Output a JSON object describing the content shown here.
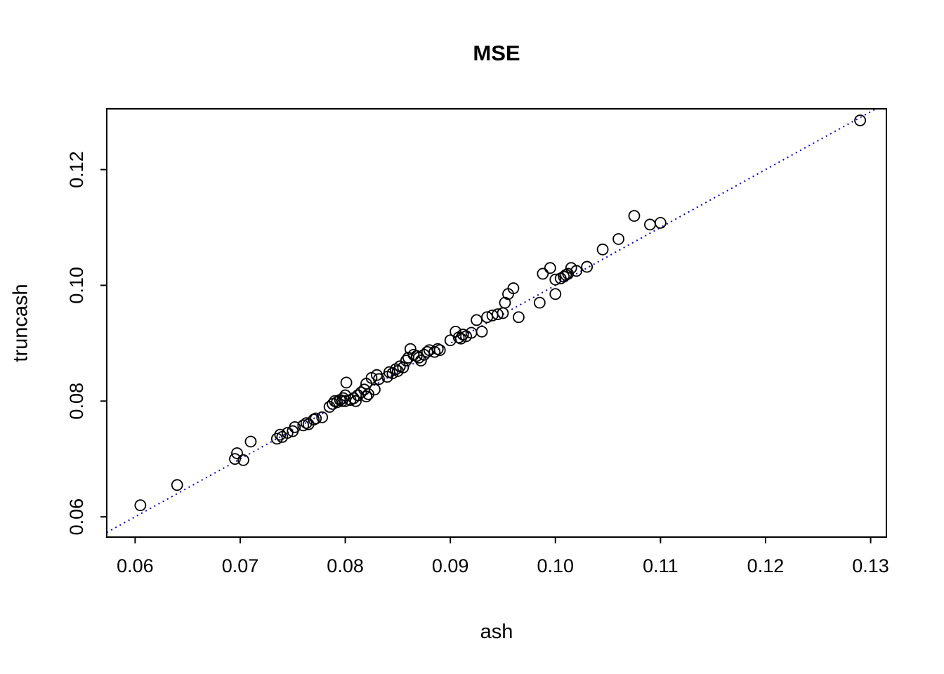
{
  "chart_data": {
    "type": "scatter",
    "title": "MSE",
    "xlabel": "ash",
    "ylabel": "truncash",
    "xlim": [
      0.0573,
      0.1315
    ],
    "ylim": [
      0.0565,
      0.1305
    ],
    "xticks": [
      0.06,
      0.07,
      0.08,
      0.09,
      0.1,
      0.11,
      0.12,
      0.13
    ],
    "yticks": [
      0.06,
      0.08,
      0.1,
      0.12
    ],
    "grid": false,
    "point_style": "open-circle",
    "point_color": "#000000",
    "reference_line": {
      "slope": 1,
      "intercept": 0,
      "style": "dotted",
      "color": "#0000CD"
    },
    "points": [
      [
        0.0605,
        0.062
      ],
      [
        0.064,
        0.0655
      ],
      [
        0.0695,
        0.07
      ],
      [
        0.0697,
        0.071
      ],
      [
        0.0703,
        0.0698
      ],
      [
        0.071,
        0.073
      ],
      [
        0.0735,
        0.0735
      ],
      [
        0.0738,
        0.0742
      ],
      [
        0.074,
        0.0738
      ],
      [
        0.0745,
        0.0745
      ],
      [
        0.075,
        0.0748
      ],
      [
        0.0752,
        0.0755
      ],
      [
        0.076,
        0.0758
      ],
      [
        0.0763,
        0.0762
      ],
      [
        0.0765,
        0.076
      ],
      [
        0.077,
        0.0768
      ],
      [
        0.0772,
        0.077
      ],
      [
        0.0778,
        0.0772
      ],
      [
        0.0785,
        0.079
      ],
      [
        0.0788,
        0.0795
      ],
      [
        0.079,
        0.08
      ],
      [
        0.0792,
        0.0798
      ],
      [
        0.0795,
        0.0802
      ],
      [
        0.0797,
        0.08
      ],
      [
        0.0798,
        0.0805
      ],
      [
        0.08,
        0.08
      ],
      [
        0.08,
        0.081
      ],
      [
        0.0801,
        0.0832
      ],
      [
        0.0805,
        0.0802
      ],
      [
        0.0808,
        0.0805
      ],
      [
        0.081,
        0.08
      ],
      [
        0.0812,
        0.081
      ],
      [
        0.0815,
        0.0815
      ],
      [
        0.0818,
        0.082
      ],
      [
        0.082,
        0.0808
      ],
      [
        0.082,
        0.083
      ],
      [
        0.0822,
        0.0812
      ],
      [
        0.0825,
        0.084
      ],
      [
        0.0828,
        0.082
      ],
      [
        0.083,
        0.0845
      ],
      [
        0.0832,
        0.0838
      ],
      [
        0.084,
        0.0842
      ],
      [
        0.0842,
        0.085
      ],
      [
        0.0845,
        0.0848
      ],
      [
        0.0848,
        0.0855
      ],
      [
        0.085,
        0.0852
      ],
      [
        0.0852,
        0.086
      ],
      [
        0.0855,
        0.0858
      ],
      [
        0.0858,
        0.087
      ],
      [
        0.086,
        0.0875
      ],
      [
        0.0862,
        0.089
      ],
      [
        0.0865,
        0.088
      ],
      [
        0.0868,
        0.0878
      ],
      [
        0.087,
        0.0875
      ],
      [
        0.0872,
        0.087
      ],
      [
        0.0875,
        0.088
      ],
      [
        0.0878,
        0.0885
      ],
      [
        0.088,
        0.0888
      ],
      [
        0.0885,
        0.0885
      ],
      [
        0.0888,
        0.089
      ],
      [
        0.089,
        0.0888
      ],
      [
        0.09,
        0.0905
      ],
      [
        0.0905,
        0.092
      ],
      [
        0.0908,
        0.091
      ],
      [
        0.091,
        0.0908
      ],
      [
        0.0912,
        0.0915
      ],
      [
        0.0915,
        0.0912
      ],
      [
        0.092,
        0.0918
      ],
      [
        0.0925,
        0.094
      ],
      [
        0.093,
        0.092
      ],
      [
        0.0935,
        0.0945
      ],
      [
        0.094,
        0.0948
      ],
      [
        0.0945,
        0.095
      ],
      [
        0.095,
        0.0952
      ],
      [
        0.0952,
        0.097
      ],
      [
        0.0955,
        0.0985
      ],
      [
        0.096,
        0.0995
      ],
      [
        0.0965,
        0.0945
      ],
      [
        0.0985,
        0.097
      ],
      [
        0.0988,
        0.102
      ],
      [
        0.0995,
        0.103
      ],
      [
        0.1,
        0.0985
      ],
      [
        0.1,
        0.101
      ],
      [
        0.1005,
        0.1012
      ],
      [
        0.1008,
        0.1015
      ],
      [
        0.101,
        0.1018
      ],
      [
        0.1012,
        0.102
      ],
      [
        0.1015,
        0.103
      ],
      [
        0.102,
        0.1025
      ],
      [
        0.103,
        0.1032
      ],
      [
        0.1045,
        0.1062
      ],
      [
        0.106,
        0.108
      ],
      [
        0.1075,
        0.112
      ],
      [
        0.109,
        0.1105
      ],
      [
        0.11,
        0.1108
      ],
      [
        0.129,
        0.1285
      ]
    ]
  }
}
